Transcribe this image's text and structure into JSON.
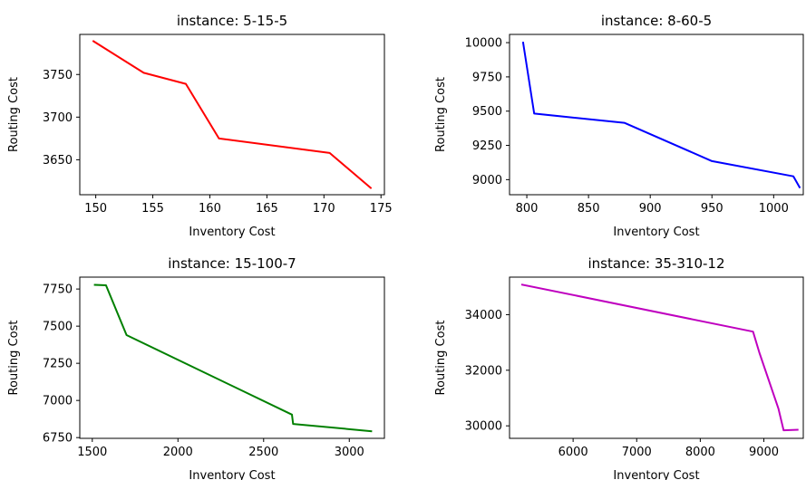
{
  "chart_data": [
    {
      "type": "line",
      "title": "instance: 5-15-5",
      "xlabel": "Inventory Cost",
      "ylabel": "Routing Cost",
      "color": "#ff0000",
      "xlim": [
        148.6,
        175.3
      ],
      "ylim": [
        3609,
        3797
      ],
      "xticks": [
        150,
        155,
        160,
        165,
        170,
        175
      ],
      "yticks": [
        3650,
        3700,
        3750
      ],
      "x": [
        149.8,
        154.2,
        157.9,
        160.8,
        170.5,
        174.1
      ],
      "y": [
        3789,
        3752,
        3739,
        3675,
        3658,
        3617
      ]
    },
    {
      "type": "line",
      "title": "instance: 8-60-5",
      "xlabel": "Inventory Cost",
      "ylabel": "Routing Cost",
      "color": "#0000ff",
      "xlim": [
        786,
        1024
      ],
      "ylim": [
        8890,
        10060
      ],
      "xticks": [
        800,
        850,
        900,
        950,
        1000
      ],
      "yticks": [
        9000,
        9250,
        9500,
        9750,
        10000
      ],
      "x": [
        797,
        806,
        879,
        950,
        1016,
        1021
      ],
      "y": [
        10000,
        9482,
        9415,
        9135,
        9024,
        8945
      ]
    },
    {
      "type": "line",
      "title": "instance: 15-100-7",
      "xlabel": "Inventory Cost",
      "ylabel": "Routing Cost",
      "color": "#008000",
      "xlim": [
        1427,
        3205
      ],
      "ylim": [
        6745,
        7830
      ],
      "xticks": [
        1500,
        2000,
        2500,
        3000
      ],
      "yticks": [
        6750,
        7000,
        7250,
        7500,
        7750
      ],
      "x": [
        1515,
        1580,
        1700,
        2665,
        2672,
        3128
      ],
      "y": [
        7778,
        7775,
        7440,
        6905,
        6842,
        6793
      ]
    },
    {
      "type": "line",
      "title": "instance: 35-310-12",
      "xlabel": "Inventory Cost",
      "ylabel": "Routing Cost",
      "color": "#bf00bf",
      "xlim": [
        5000,
        9620
      ],
      "ylim": [
        29550,
        35350
      ],
      "xticks": [
        6000,
        7000,
        8000,
        9000
      ],
      "yticks": [
        30000,
        32000,
        34000
      ],
      "x": [
        5200,
        8830,
        8930,
        9230,
        9310,
        9530
      ],
      "y": [
        35080,
        33390,
        32630,
        30620,
        29840,
        29860
      ]
    }
  ]
}
